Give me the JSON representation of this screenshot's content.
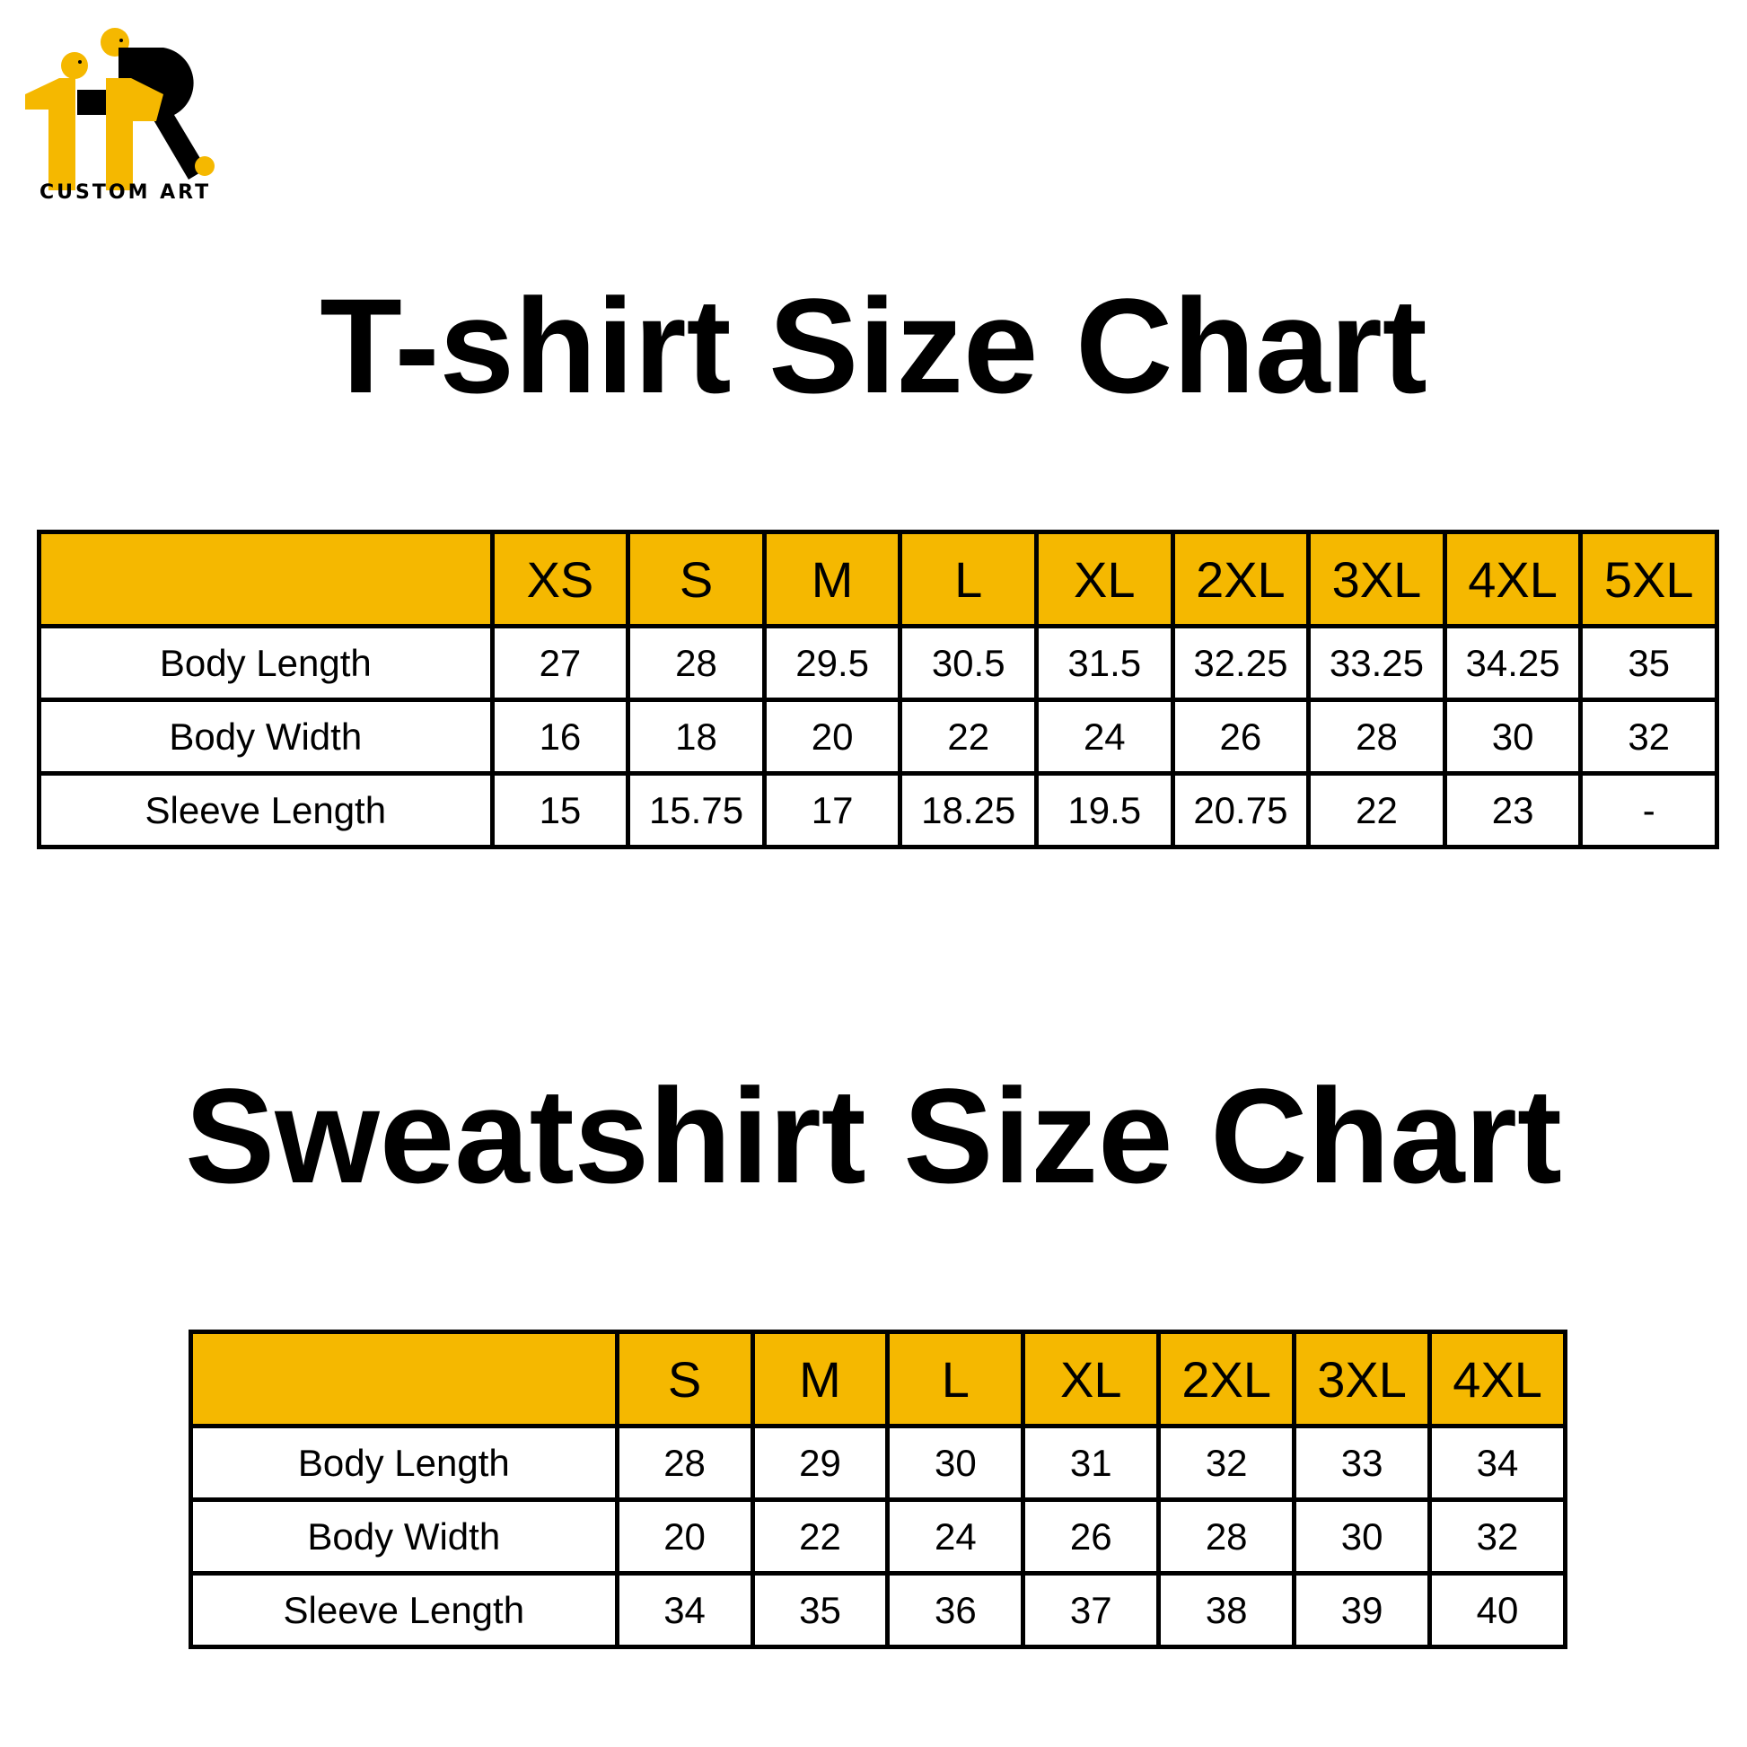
{
  "logo": {
    "text": "CUSTOM ART",
    "colors": {
      "yellow": "#f5b800",
      "black": "#000000"
    }
  },
  "tshirt": {
    "title": "T-shirt Size Chart",
    "sizes": [
      "XS",
      "S",
      "M",
      "L",
      "XL",
      "2XL",
      "3XL",
      "4XL",
      "5XL"
    ],
    "rows": [
      {
        "label": "Body Length",
        "values": [
          "27",
          "28",
          "29.5",
          "30.5",
          "31.5",
          "32.25",
          "33.25",
          "34.25",
          "35"
        ]
      },
      {
        "label": "Body Width",
        "values": [
          "16",
          "18",
          "20",
          "22",
          "24",
          "26",
          "28",
          "30",
          "32"
        ]
      },
      {
        "label": "Sleeve Length",
        "values": [
          "15",
          "15.75",
          "17",
          "18.25",
          "19.5",
          "20.75",
          "22",
          "23",
          "-"
        ]
      }
    ]
  },
  "sweatshirt": {
    "title": "Sweatshirt Size Chart",
    "sizes": [
      "S",
      "M",
      "L",
      "XL",
      "2XL",
      "3XL",
      "4XL"
    ],
    "rows": [
      {
        "label": "Body Length",
        "values": [
          "28",
          "29",
          "30",
          "31",
          "32",
          "33",
          "34"
        ]
      },
      {
        "label": "Body Width",
        "values": [
          "20",
          "22",
          "24",
          "26",
          "28",
          "30",
          "32"
        ]
      },
      {
        "label": "Sleeve Length",
        "values": [
          "34",
          "35",
          "36",
          "37",
          "38",
          "39",
          "40"
        ]
      }
    ]
  },
  "colors": {
    "header": "#f5b800",
    "border": "#000000"
  }
}
